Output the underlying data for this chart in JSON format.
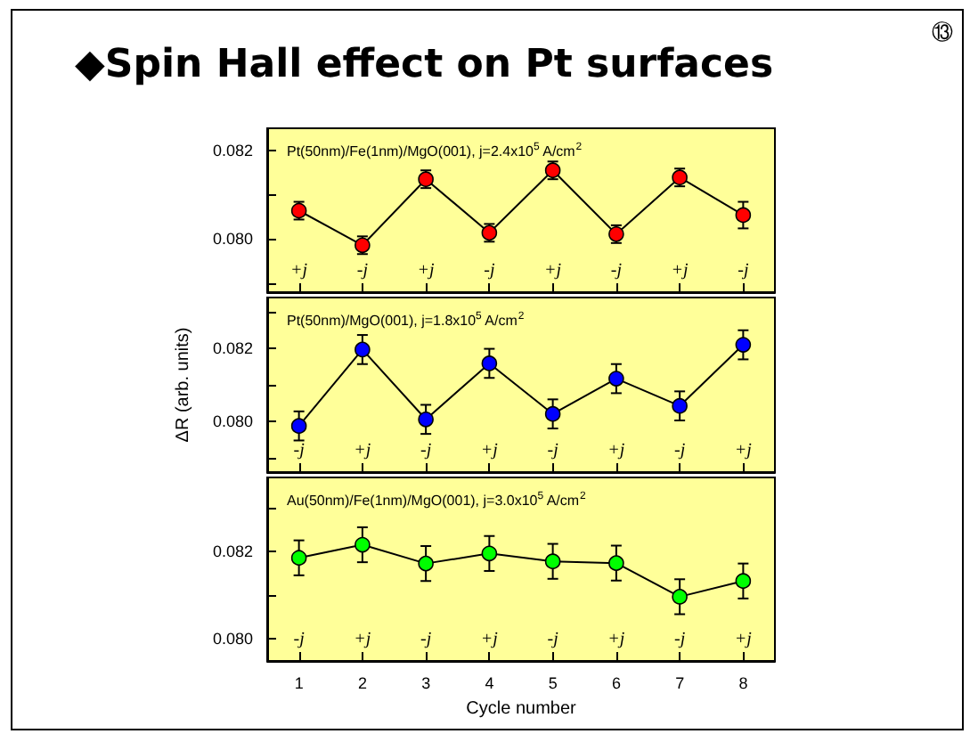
{
  "chart_data": [
    {
      "type": "line",
      "title": "◆Spin Hall effect on Pt surfaces",
      "subtitle": "Pt(50nm)/Fe(1nm)/MgO(001), j=2.4x10$^{5}$ A/cm$^{2}$",
      "x": [
        1,
        2,
        3,
        4,
        5,
        6,
        7,
        8
      ],
      "xlim": [
        0.5,
        8.5
      ],
      "xticks": [
        1,
        2,
        3,
        4,
        5,
        6,
        7,
        8
      ],
      "ylim": [
        0.0788,
        0.0825
      ],
      "yticks": [
        {
          "value": 0.079,
          "label": null
        },
        {
          "value": 0.08,
          "label": "0.080"
        },
        {
          "value": 0.081,
          "label": null
        },
        {
          "value": 0.082,
          "label": "0.082"
        }
      ],
      "series": [
        {
          "color": "#ff0000",
          "values": [
            0.08064,
            0.07986,
            0.08135,
            0.08014,
            0.08155,
            0.08011,
            0.08139,
            0.08054
          ],
          "errors": [
            0.0002,
            0.0002,
            0.0002,
            0.0002,
            0.0002,
            0.0002,
            0.0002,
            0.0003
          ]
        }
      ],
      "marker": "circle",
      "line_style": "solid",
      "grid": false,
      "tick_labels": "y",
      "annotations": [
        "+j",
        "-j",
        "+j",
        "-j",
        "+j",
        "-j",
        "+j",
        "-j",
        "⑬"
      ]
    },
    {
      "type": "line",
      "subtitle": "Pt(50nm)/MgO(001), j=1.8x10$^{5}$ A/cm$^{2}$",
      "ylabel": "ΔR (arb. units)",
      "x": [
        1,
        2,
        3,
        4,
        5,
        6,
        7,
        8
      ],
      "xlim": [
        0.5,
        8.5
      ],
      "xticks": [
        1,
        2,
        3,
        4,
        5,
        6,
        7,
        8
      ],
      "ylim": [
        0.0786,
        0.0834
      ],
      "yticks": [
        {
          "value": 0.079,
          "label": null
        },
        {
          "value": 0.08,
          "label": "0.080"
        },
        {
          "value": 0.081,
          "label": null
        },
        {
          "value": 0.082,
          "label": "0.082"
        },
        {
          "value": 0.083,
          "label": null
        }
      ],
      "series": [
        {
          "color": "#0000ff",
          "values": [
            0.07987,
            0.08197,
            0.08005,
            0.08159,
            0.0802,
            0.08117,
            0.08042,
            0.0821
          ],
          "errors": [
            0.0004,
            0.0004,
            0.0004,
            0.0004,
            0.0004,
            0.0004,
            0.0004,
            0.0004
          ]
        }
      ],
      "marker": "circle",
      "line_style": "solid",
      "grid": false,
      "tick_labels": "y",
      "annotations": [
        "-j",
        "+j",
        "-j",
        "+j",
        "-j",
        "+j",
        "-j",
        "+j"
      ]
    },
    {
      "type": "line",
      "subtitle": "Au(50nm)/Fe(1nm)/MgO(001), j=3.0x10$^{5}$ A/cm$^{2}$",
      "xlabel": "Cycle number",
      "x": [
        1,
        2,
        3,
        4,
        5,
        6,
        7,
        8
      ],
      "xlim": [
        0.5,
        8.5
      ],
      "xticks": [
        1,
        2,
        3,
        4,
        5,
        6,
        7,
        8
      ],
      "ylim": [
        0.0795,
        0.0837
      ],
      "yticks": [
        {
          "value": 0.08,
          "label": "0.080"
        },
        {
          "value": 0.081,
          "label": null
        },
        {
          "value": 0.082,
          "label": "0.082"
        },
        {
          "value": 0.083,
          "label": null
        }
      ],
      "series": [
        {
          "color": "#00ff00",
          "values": [
            0.08186,
            0.08216,
            0.08173,
            0.08196,
            0.08178,
            0.08174,
            0.08097,
            0.08133
          ],
          "errors": [
            0.0004,
            0.0004,
            0.0004,
            0.0004,
            0.0004,
            0.0004,
            0.0004,
            0.0004
          ]
        }
      ],
      "marker": "circle",
      "line_style": "solid",
      "grid": false,
      "annotations": [
        "-j",
        "+j",
        "-j",
        "+j",
        "-j",
        "+j",
        "-j",
        "+j"
      ]
    }
  ]
}
